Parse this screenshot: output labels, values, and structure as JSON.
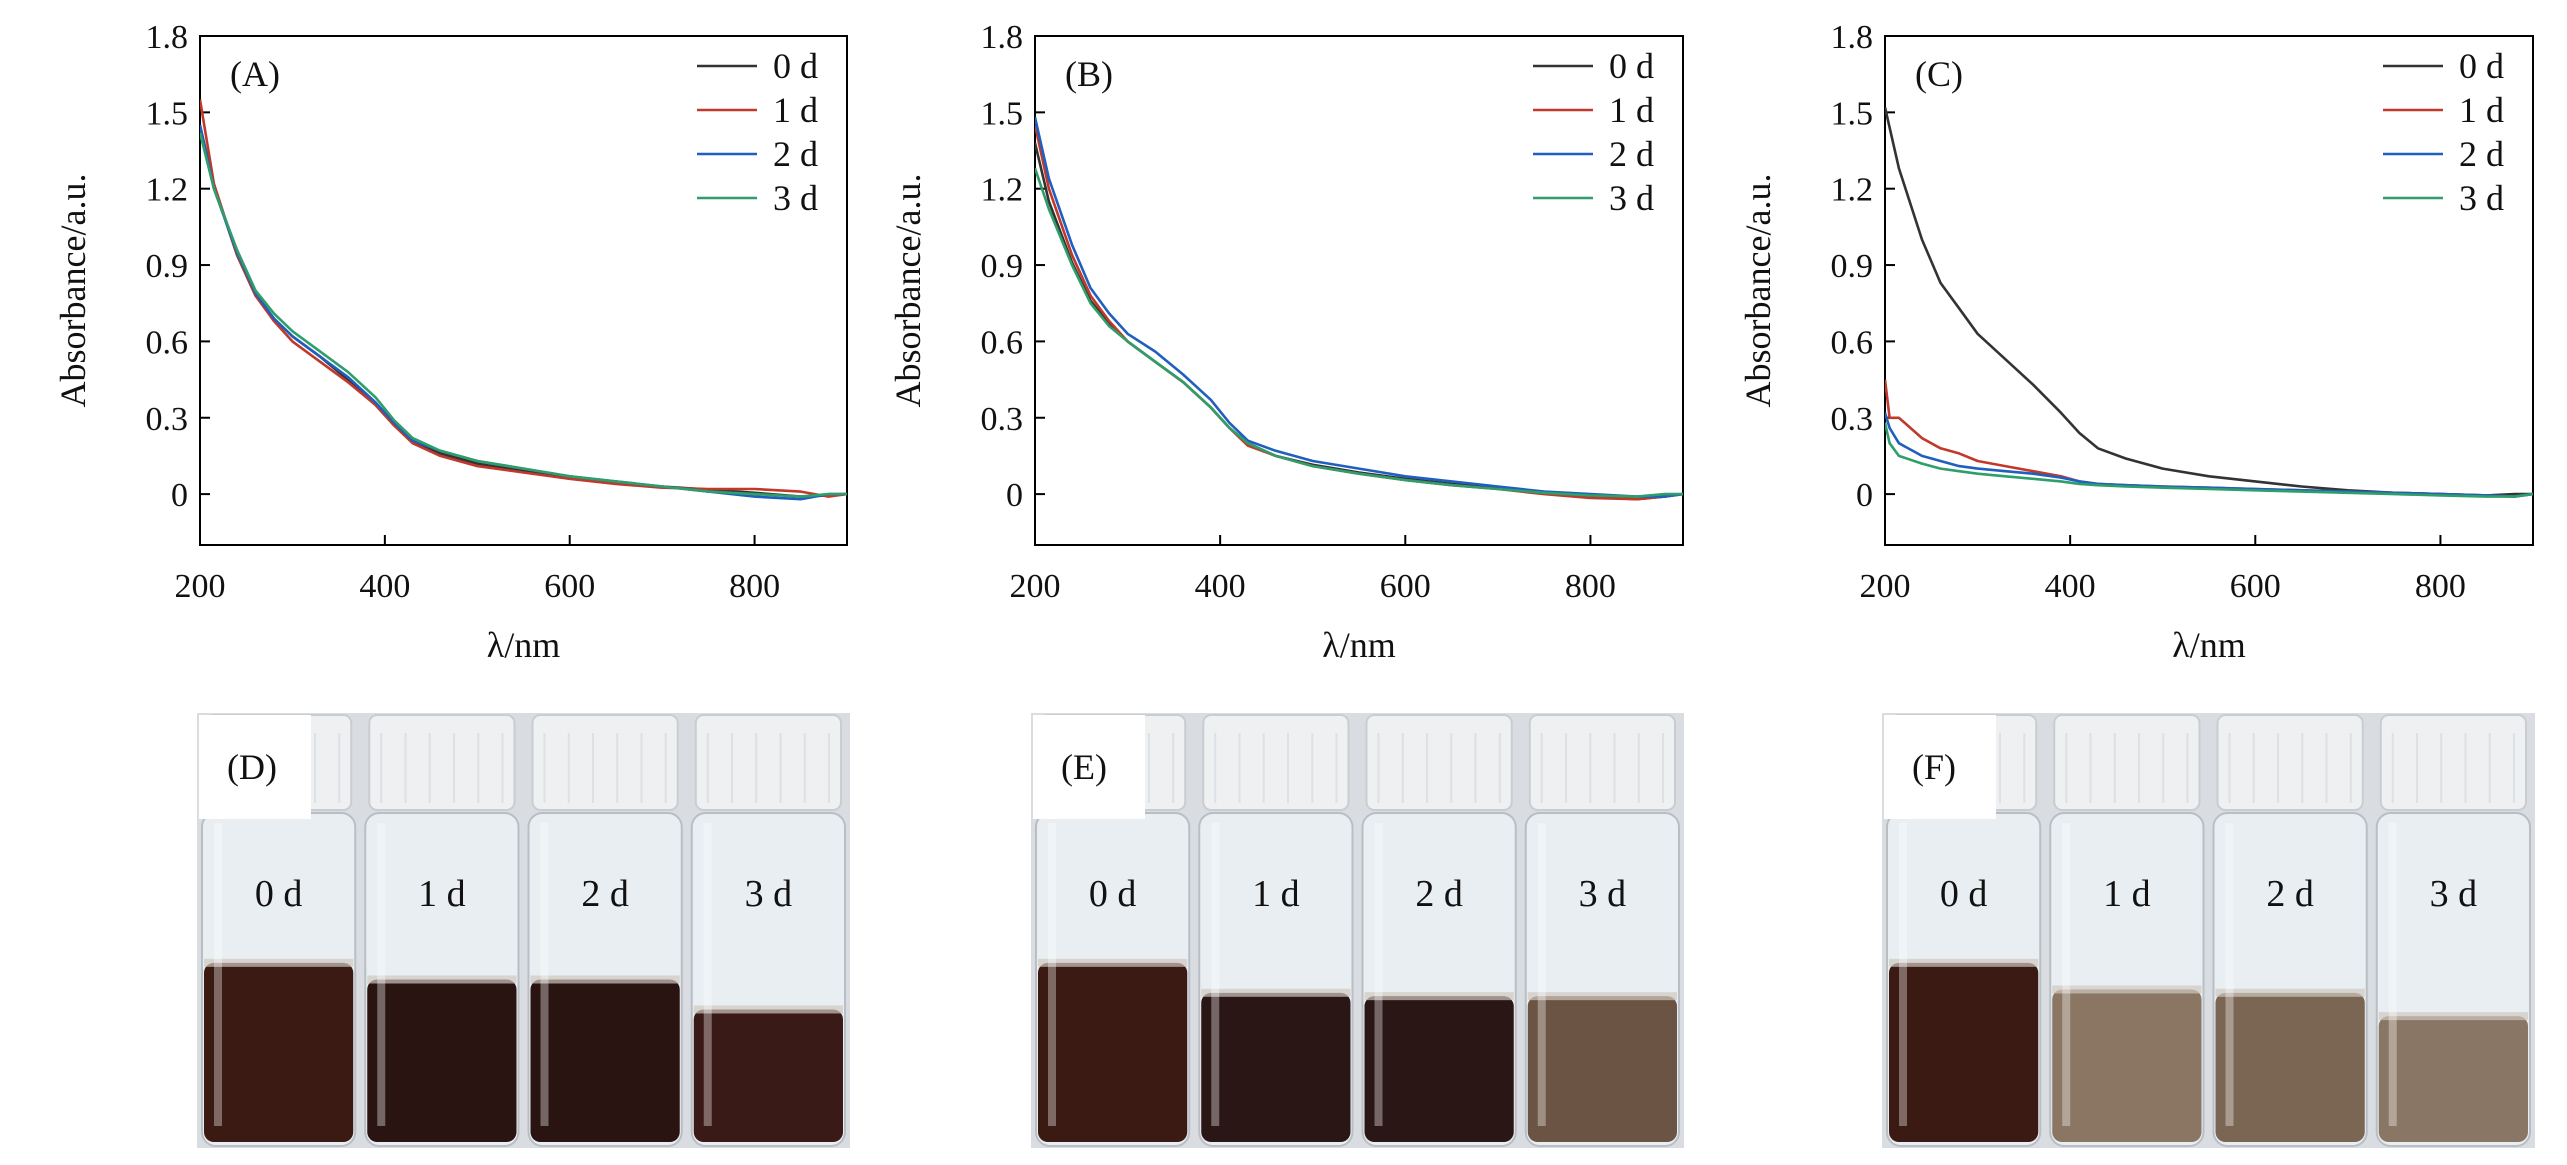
{
  "chart_data": [
    {
      "type": "line",
      "panel_label": "(A)",
      "xlabel": "λ/nm",
      "ylabel": "Absorbance/a.u.",
      "xlim": [
        200,
        900
      ],
      "ylim": [
        -0.2,
        1.8
      ],
      "xticks": [
        "200",
        "400",
        "600",
        "800"
      ],
      "yticks": [
        "0",
        "0.3",
        "0.6",
        "0.9",
        "1.2",
        "1.5",
        "1.8"
      ],
      "legend_position": "top-right",
      "series": [
        {
          "name": "0 d",
          "color": "#333333",
          "x": [
            200,
            215,
            240,
            260,
            280,
            300,
            330,
            360,
            390,
            410,
            430,
            460,
            500,
            550,
            600,
            650,
            700,
            750,
            800,
            850,
            880,
            900
          ],
          "y": [
            1.45,
            1.21,
            0.94,
            0.78,
            0.69,
            0.62,
            0.54,
            0.45,
            0.35,
            0.27,
            0.21,
            0.16,
            0.12,
            0.09,
            0.065,
            0.045,
            0.03,
            0.018,
            0.005,
            -0.01,
            -0.005,
            0
          ]
        },
        {
          "name": "1 d",
          "color": "#c0392b",
          "x": [
            200,
            215,
            240,
            260,
            280,
            300,
            330,
            360,
            390,
            410,
            430,
            460,
            500,
            550,
            600,
            650,
            700,
            750,
            800,
            850,
            880,
            900
          ],
          "y": [
            1.55,
            1.22,
            0.94,
            0.78,
            0.68,
            0.6,
            0.52,
            0.44,
            0.35,
            0.27,
            0.2,
            0.15,
            0.11,
            0.085,
            0.06,
            0.04,
            0.025,
            0.02,
            0.02,
            0.01,
            -0.01,
            0
          ]
        },
        {
          "name": "2 d",
          "color": "#1f5fbf",
          "x": [
            200,
            215,
            240,
            260,
            280,
            300,
            330,
            360,
            390,
            410,
            430,
            460,
            500,
            550,
            600,
            650,
            700,
            750,
            800,
            850,
            880,
            900
          ],
          "y": [
            1.45,
            1.2,
            0.95,
            0.79,
            0.69,
            0.62,
            0.54,
            0.46,
            0.36,
            0.28,
            0.21,
            0.17,
            0.13,
            0.1,
            0.07,
            0.05,
            0.03,
            0.01,
            -0.01,
            -0.02,
            0,
            0
          ]
        },
        {
          "name": "3 d",
          "color": "#2e9e6a",
          "x": [
            200,
            215,
            240,
            260,
            280,
            300,
            330,
            360,
            390,
            410,
            430,
            460,
            500,
            550,
            600,
            650,
            700,
            750,
            800,
            850,
            880,
            900
          ],
          "y": [
            1.42,
            1.2,
            0.96,
            0.8,
            0.71,
            0.64,
            0.56,
            0.48,
            0.38,
            0.29,
            0.22,
            0.17,
            0.13,
            0.1,
            0.07,
            0.05,
            0.03,
            0.01,
            0.0,
            -0.01,
            0,
            0
          ]
        }
      ]
    },
    {
      "type": "line",
      "panel_label": "(B)",
      "xlabel": "λ/nm",
      "ylabel": "Absorbance/a.u.",
      "xlim": [
        200,
        900
      ],
      "ylim": [
        -0.2,
        1.8
      ],
      "xticks": [
        "200",
        "400",
        "600",
        "800"
      ],
      "yticks": [
        "0",
        "0.3",
        "0.6",
        "0.9",
        "1.2",
        "1.5",
        "1.8"
      ],
      "legend_position": "top-right",
      "series": [
        {
          "name": "0 d",
          "color": "#333333",
          "x": [
            200,
            215,
            240,
            260,
            280,
            300,
            330,
            360,
            390,
            410,
            430,
            460,
            500,
            550,
            600,
            650,
            700,
            750,
            800,
            850,
            880,
            900
          ],
          "y": [
            1.38,
            1.15,
            0.91,
            0.76,
            0.67,
            0.6,
            0.52,
            0.44,
            0.34,
            0.26,
            0.2,
            0.15,
            0.115,
            0.085,
            0.06,
            0.04,
            0.025,
            0.005,
            -0.01,
            -0.02,
            -0.01,
            0
          ]
        },
        {
          "name": "1 d",
          "color": "#c0392b",
          "x": [
            200,
            215,
            240,
            260,
            280,
            300,
            330,
            360,
            390,
            410,
            430,
            460,
            500,
            550,
            600,
            650,
            700,
            750,
            800,
            850,
            880,
            900
          ],
          "y": [
            1.45,
            1.2,
            0.94,
            0.78,
            0.68,
            0.6,
            0.52,
            0.44,
            0.34,
            0.26,
            0.19,
            0.15,
            0.11,
            0.08,
            0.055,
            0.035,
            0.02,
            0.0,
            -0.015,
            -0.02,
            -0.01,
            0
          ]
        },
        {
          "name": "2 d",
          "color": "#1f5fbf",
          "x": [
            200,
            215,
            240,
            260,
            280,
            300,
            330,
            360,
            390,
            410,
            430,
            460,
            500,
            550,
            600,
            650,
            700,
            750,
            800,
            850,
            880,
            900
          ],
          "y": [
            1.48,
            1.24,
            0.98,
            0.81,
            0.71,
            0.63,
            0.56,
            0.47,
            0.37,
            0.28,
            0.21,
            0.17,
            0.13,
            0.1,
            0.07,
            0.05,
            0.03,
            0.01,
            0.0,
            -0.01,
            -0.01,
            0
          ]
        },
        {
          "name": "3 d",
          "color": "#2e9e6a",
          "x": [
            200,
            215,
            240,
            260,
            280,
            300,
            330,
            360,
            390,
            410,
            430,
            460,
            500,
            550,
            600,
            650,
            700,
            750,
            800,
            850,
            880,
            900
          ],
          "y": [
            1.28,
            1.12,
            0.9,
            0.75,
            0.66,
            0.6,
            0.52,
            0.44,
            0.34,
            0.26,
            0.2,
            0.15,
            0.11,
            0.08,
            0.055,
            0.035,
            0.02,
            0.005,
            -0.005,
            -0.01,
            0,
            0
          ]
        }
      ]
    },
    {
      "type": "line",
      "panel_label": "(C)",
      "xlabel": "λ/nm",
      "ylabel": "Absorbance/a.u.",
      "xlim": [
        200,
        900
      ],
      "ylim": [
        -0.2,
        1.8
      ],
      "xticks": [
        "200",
        "400",
        "600",
        "800"
      ],
      "yticks": [
        "0",
        "0.3",
        "0.6",
        "0.9",
        "1.2",
        "1.5",
        "1.8"
      ],
      "legend_position": "top-right",
      "series": [
        {
          "name": "0 d",
          "color": "#333333",
          "x": [
            200,
            215,
            240,
            260,
            280,
            300,
            330,
            360,
            390,
            410,
            430,
            460,
            500,
            550,
            600,
            650,
            700,
            750,
            800,
            850,
            880,
            900
          ],
          "y": [
            1.52,
            1.28,
            1.0,
            0.83,
            0.73,
            0.63,
            0.53,
            0.43,
            0.32,
            0.24,
            0.18,
            0.14,
            0.1,
            0.07,
            0.05,
            0.03,
            0.015,
            0.005,
            0.0,
            -0.005,
            0,
            0
          ]
        },
        {
          "name": "1 d",
          "color": "#c0392b",
          "x": [
            200,
            205,
            215,
            240,
            260,
            280,
            300,
            330,
            360,
            390,
            410,
            430,
            460,
            500,
            550,
            600,
            650,
            700,
            750,
            800,
            850,
            880,
            900
          ],
          "y": [
            0.45,
            0.3,
            0.3,
            0.22,
            0.18,
            0.16,
            0.13,
            0.11,
            0.09,
            0.07,
            0.05,
            0.04,
            0.035,
            0.03,
            0.025,
            0.02,
            0.015,
            0.01,
            0.005,
            0.0,
            -0.005,
            -0.01,
            0
          ]
        },
        {
          "name": "2 d",
          "color": "#1f5fbf",
          "x": [
            200,
            205,
            215,
            240,
            260,
            280,
            300,
            330,
            360,
            390,
            410,
            430,
            460,
            500,
            550,
            600,
            650,
            700,
            750,
            800,
            850,
            880,
            900
          ],
          "y": [
            0.32,
            0.26,
            0.2,
            0.15,
            0.13,
            0.11,
            0.1,
            0.09,
            0.08,
            0.065,
            0.05,
            0.04,
            0.035,
            0.03,
            0.025,
            0.02,
            0.015,
            0.01,
            0.005,
            0.0,
            -0.005,
            -0.01,
            0
          ]
        },
        {
          "name": "3 d",
          "color": "#2e9e6a",
          "x": [
            200,
            205,
            215,
            240,
            260,
            280,
            300,
            330,
            360,
            390,
            410,
            430,
            460,
            500,
            550,
            600,
            650,
            700,
            750,
            800,
            850,
            880,
            900
          ],
          "y": [
            0.28,
            0.2,
            0.15,
            0.12,
            0.1,
            0.09,
            0.08,
            0.07,
            0.06,
            0.05,
            0.04,
            0.035,
            0.03,
            0.025,
            0.02,
            0.015,
            0.01,
            0.005,
            0.0,
            -0.005,
            -0.01,
            -0.01,
            0
          ]
        }
      ]
    }
  ],
  "photos": [
    {
      "panel_label": "(D)",
      "vials": [
        {
          "label": "0 d",
          "liquid_color": "#3a1a12",
          "level": 0.55
        },
        {
          "label": "1 d",
          "liquid_color": "#2a1412",
          "level": 0.5
        },
        {
          "label": "2 d",
          "liquid_color": "#2a1412",
          "level": 0.5
        },
        {
          "label": "3 d",
          "liquid_color": "#3a1a16",
          "level": 0.41
        }
      ]
    },
    {
      "panel_label": "(E)",
      "vials": [
        {
          "label": "0 d",
          "liquid_color": "#3a1a12",
          "level": 0.55
        },
        {
          "label": "1 d",
          "liquid_color": "#2a1614",
          "level": 0.46
        },
        {
          "label": "2 d",
          "liquid_color": "#2a1614",
          "level": 0.45
        },
        {
          "label": "3 d",
          "liquid_color": "#6b5444",
          "level": 0.45
        }
      ]
    },
    {
      "panel_label": "(F)",
      "vials": [
        {
          "label": "0 d",
          "liquid_color": "#3a1a12",
          "level": 0.55
        },
        {
          "label": "1 d",
          "liquid_color": "#8a7662",
          "level": 0.47
        },
        {
          "label": "2 d",
          "liquid_color": "#7b6654",
          "level": 0.46
        },
        {
          "label": "3 d",
          "liquid_color": "#8a7664",
          "level": 0.39
        }
      ]
    }
  ]
}
